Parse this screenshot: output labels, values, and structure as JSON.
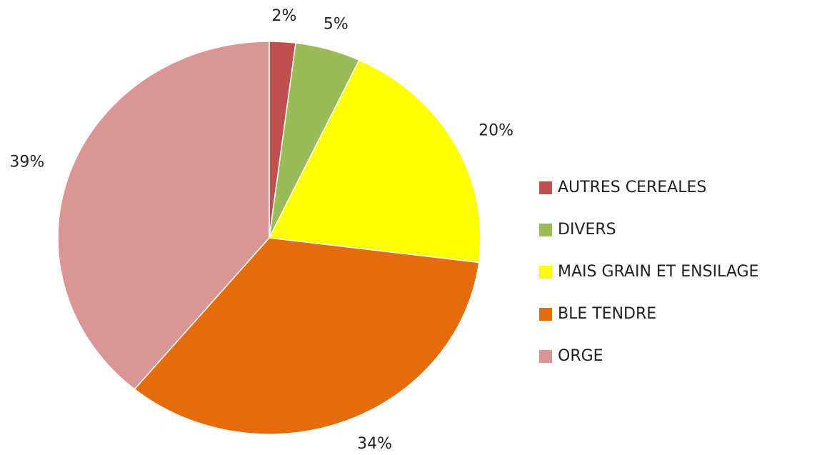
{
  "chart_data": {
    "type": "pie",
    "categories": [
      "AUTRES CEREALES",
      "DIVERS",
      "MAIS GRAIN ET ENSILAGE",
      "BLE TENDRE",
      "ORGE"
    ],
    "values": [
      2,
      5,
      20,
      34,
      39
    ],
    "value_labels": [
      "2%",
      "5%",
      "20%",
      "34%",
      "39%"
    ],
    "colors": [
      "#c0504d",
      "#9bbb59",
      "#ffff00",
      "#e46c0a",
      "#d99694"
    ],
    "legend": "right"
  }
}
